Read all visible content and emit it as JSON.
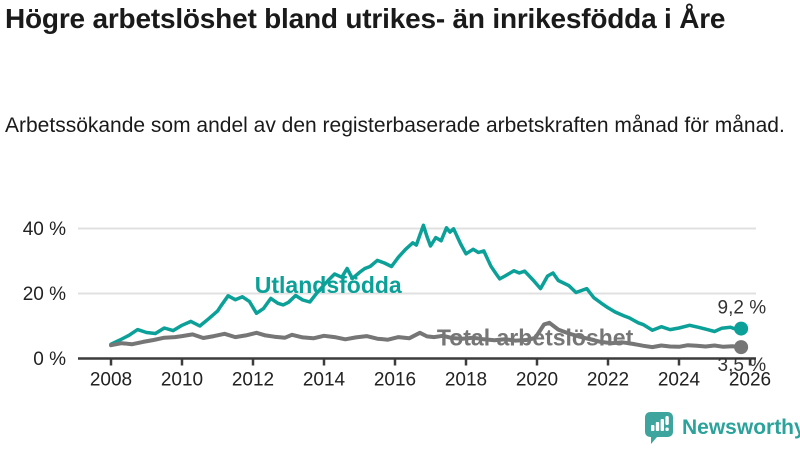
{
  "header": {
    "title": "Högre arbetslöshet bland utrikes- än inrikesfödda i Åre",
    "subtitle": "Arbetssökande som andel av den registerbaserade arbetskraften månad för månad."
  },
  "footer": {
    "brand": "Newsworthy",
    "logo_icon": "bar-chart-speech-bubble-icon",
    "brand_color": "#2ba39b"
  },
  "chart_data": {
    "type": "line",
    "title": "Högre arbetslöshet bland utrikes- än inrikesfödda i Åre",
    "subtitle": "Arbetssökande som andel av den registerbaserade arbetskraften månad för månad.",
    "unit": "%",
    "grid": "horizontal-only",
    "legend_position": "inline-labels-on-lines",
    "colors": {
      "axis": "#3c3c3c",
      "gridline": "#e0e0e0",
      "tick_text": "#222222",
      "value_label_text": "#333333"
    },
    "x_axis": {
      "range": [
        2007.05,
        2026.15
      ],
      "ticks": [
        {
          "value": 2008,
          "label": "2008"
        },
        {
          "value": 2010,
          "label": "2010"
        },
        {
          "value": 2012,
          "label": "2012"
        },
        {
          "value": 2014,
          "label": "2014"
        },
        {
          "value": 2016,
          "label": "2016"
        },
        {
          "value": 2018,
          "label": "2018"
        },
        {
          "value": 2020,
          "label": "2020"
        },
        {
          "value": 2022,
          "label": "2022"
        },
        {
          "value": 2024,
          "label": "2024"
        },
        {
          "value": 2026,
          "label": "2026"
        }
      ]
    },
    "y_axis": {
      "range": [
        0,
        44
      ],
      "ticks": [
        {
          "value": 0,
          "label": "0 %"
        },
        {
          "value": 20,
          "label": "20 %"
        },
        {
          "value": 40,
          "label": "40 %"
        }
      ]
    },
    "series": [
      {
        "name": "Utlandsfödda",
        "color": "#0ba098",
        "line_width": 3.5,
        "end_label": "9,2 %",
        "end_value": 9.2,
        "label_anchor": {
          "year": 2012.05,
          "value": 22.6
        },
        "end_label_offset": [
          14,
          -21
        ],
        "points": [
          [
            2008.0,
            4.4
          ],
          [
            2008.25,
            5.7
          ],
          [
            2008.5,
            7.1
          ],
          [
            2008.75,
            8.9
          ],
          [
            2009.0,
            8.0
          ],
          [
            2009.25,
            7.7
          ],
          [
            2009.5,
            9.4
          ],
          [
            2009.75,
            8.6
          ],
          [
            2010.0,
            10.2
          ],
          [
            2010.25,
            11.4
          ],
          [
            2010.5,
            10.0
          ],
          [
            2010.75,
            12.2
          ],
          [
            2011.0,
            14.6
          ],
          [
            2011.1,
            16.2
          ],
          [
            2011.3,
            19.3
          ],
          [
            2011.5,
            18.1
          ],
          [
            2011.7,
            19.0
          ],
          [
            2011.9,
            17.5
          ],
          [
            2012.1,
            13.9
          ],
          [
            2012.3,
            15.4
          ],
          [
            2012.5,
            18.5
          ],
          [
            2012.7,
            17.0
          ],
          [
            2012.85,
            16.5
          ],
          [
            2013.0,
            17.3
          ],
          [
            2013.2,
            19.4
          ],
          [
            2013.4,
            18.0
          ],
          [
            2013.6,
            17.4
          ],
          [
            2013.8,
            20.2
          ],
          [
            2014.0,
            22.6
          ],
          [
            2014.15,
            24.4
          ],
          [
            2014.3,
            26.0
          ],
          [
            2014.5,
            25.0
          ],
          [
            2014.65,
            27.7
          ],
          [
            2014.8,
            24.6
          ],
          [
            2015.0,
            26.5
          ],
          [
            2015.15,
            27.7
          ],
          [
            2015.3,
            28.3
          ],
          [
            2015.5,
            30.2
          ],
          [
            2015.7,
            29.4
          ],
          [
            2015.9,
            28.3
          ],
          [
            2016.1,
            31.2
          ],
          [
            2016.3,
            33.6
          ],
          [
            2016.5,
            35.6
          ],
          [
            2016.6,
            34.9
          ],
          [
            2016.7,
            38.0
          ],
          [
            2016.8,
            41.0
          ],
          [
            2016.9,
            37.5
          ],
          [
            2017.0,
            34.6
          ],
          [
            2017.15,
            37.2
          ],
          [
            2017.3,
            36.2
          ],
          [
            2017.45,
            40.2
          ],
          [
            2017.55,
            38.9
          ],
          [
            2017.65,
            39.9
          ],
          [
            2017.85,
            35.2
          ],
          [
            2018.0,
            32.2
          ],
          [
            2018.2,
            33.6
          ],
          [
            2018.35,
            32.6
          ],
          [
            2018.5,
            33.1
          ],
          [
            2018.7,
            28.4
          ],
          [
            2018.85,
            26.0
          ],
          [
            2018.95,
            24.5
          ],
          [
            2019.1,
            25.4
          ],
          [
            2019.35,
            27.0
          ],
          [
            2019.5,
            26.3
          ],
          [
            2019.65,
            26.9
          ],
          [
            2019.9,
            24.0
          ],
          [
            2020.1,
            21.5
          ],
          [
            2020.3,
            25.4
          ],
          [
            2020.45,
            26.3
          ],
          [
            2020.6,
            24.0
          ],
          [
            2020.9,
            22.4
          ],
          [
            2021.1,
            20.3
          ],
          [
            2021.4,
            21.5
          ],
          [
            2021.6,
            18.7
          ],
          [
            2021.8,
            17.1
          ],
          [
            2022.0,
            15.6
          ],
          [
            2022.2,
            14.3
          ],
          [
            2022.45,
            13.1
          ],
          [
            2022.6,
            12.5
          ],
          [
            2022.85,
            11.0
          ],
          [
            2023.0,
            10.4
          ],
          [
            2023.25,
            8.7
          ],
          [
            2023.5,
            9.8
          ],
          [
            2023.75,
            8.9
          ],
          [
            2024.0,
            9.4
          ],
          [
            2024.3,
            10.2
          ],
          [
            2024.55,
            9.6
          ],
          [
            2024.8,
            8.9
          ],
          [
            2025.0,
            8.3
          ],
          [
            2025.2,
            9.3
          ],
          [
            2025.45,
            9.6
          ],
          [
            2025.6,
            9.0
          ],
          [
            2025.75,
            9.2
          ]
        ]
      },
      {
        "name": "Total arbetslöshet",
        "color": "#767676",
        "line_width": 4,
        "end_label": "3,5 %",
        "end_value": 3.5,
        "label_anchor": {
          "year": 2017.18,
          "value": 6.4
        },
        "end_label_offset": [
          14,
          18
        ],
        "points": [
          [
            2008.0,
            4.1
          ],
          [
            2008.3,
            4.7
          ],
          [
            2008.6,
            4.4
          ],
          [
            2008.9,
            5.1
          ],
          [
            2009.2,
            5.7
          ],
          [
            2009.5,
            6.4
          ],
          [
            2009.8,
            6.6
          ],
          [
            2010.0,
            6.9
          ],
          [
            2010.3,
            7.4
          ],
          [
            2010.6,
            6.3
          ],
          [
            2010.9,
            6.9
          ],
          [
            2011.2,
            7.6
          ],
          [
            2011.5,
            6.6
          ],
          [
            2011.8,
            7.1
          ],
          [
            2012.1,
            7.9
          ],
          [
            2012.35,
            7.1
          ],
          [
            2012.6,
            6.7
          ],
          [
            2012.9,
            6.4
          ],
          [
            2013.1,
            7.3
          ],
          [
            2013.4,
            6.5
          ],
          [
            2013.7,
            6.2
          ],
          [
            2014.0,
            7.0
          ],
          [
            2014.3,
            6.6
          ],
          [
            2014.6,
            5.9
          ],
          [
            2014.9,
            6.5
          ],
          [
            2015.2,
            6.9
          ],
          [
            2015.5,
            6.1
          ],
          [
            2015.8,
            5.8
          ],
          [
            2016.1,
            6.6
          ],
          [
            2016.4,
            6.2
          ],
          [
            2016.7,
            7.9
          ],
          [
            2016.9,
            6.8
          ],
          [
            2017.1,
            6.6
          ],
          [
            2017.35,
            7.0
          ],
          [
            2017.6,
            6.3
          ],
          [
            2017.9,
            6.1
          ],
          [
            2018.2,
            6.4
          ],
          [
            2018.5,
            5.9
          ],
          [
            2018.8,
            5.6
          ],
          [
            2019.1,
            5.9
          ],
          [
            2019.4,
            5.5
          ],
          [
            2019.7,
            5.7
          ],
          [
            2019.95,
            6.3
          ],
          [
            2020.2,
            10.5
          ],
          [
            2020.35,
            11.0
          ],
          [
            2020.6,
            8.9
          ],
          [
            2020.9,
            7.7
          ],
          [
            2021.2,
            6.7
          ],
          [
            2021.5,
            5.9
          ],
          [
            2021.8,
            5.1
          ],
          [
            2022.1,
            4.7
          ],
          [
            2022.4,
            5.0
          ],
          [
            2022.7,
            4.5
          ],
          [
            2023.0,
            3.9
          ],
          [
            2023.25,
            3.5
          ],
          [
            2023.5,
            4.0
          ],
          [
            2023.75,
            3.7
          ],
          [
            2024.0,
            3.6
          ],
          [
            2024.25,
            4.1
          ],
          [
            2024.5,
            3.9
          ],
          [
            2024.75,
            3.7
          ],
          [
            2025.0,
            4.0
          ],
          [
            2025.25,
            3.6
          ],
          [
            2025.5,
            3.8
          ],
          [
            2025.75,
            3.5
          ]
        ]
      }
    ]
  }
}
